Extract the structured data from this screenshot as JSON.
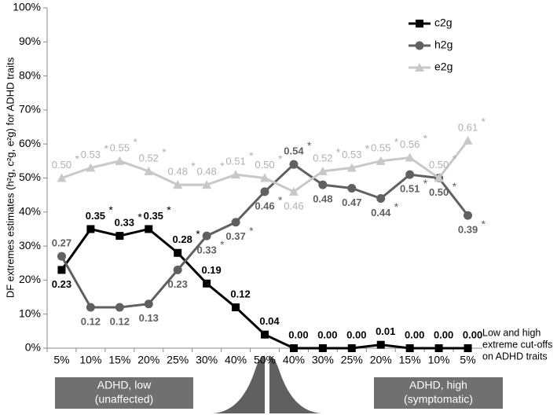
{
  "chart_data": {
    "type": "line",
    "y_label": "DF extremes estimates (h²g, c²g, e²g) for ADHD traits",
    "x_note": [
      "Low and high",
      "extreme cut-offs",
      "on ADHD traits"
    ],
    "low_box": [
      "ADHD, low",
      "(unaffected)"
    ],
    "high_box": [
      "ADHD, high",
      "(symptomatic)"
    ],
    "categories": [
      "5%",
      "10%",
      "15%",
      "20%",
      "25%",
      "30%",
      "40%",
      "50%",
      "40%",
      "30%",
      "25%",
      "20%",
      "15%",
      "10%",
      "5%"
    ],
    "ylim": [
      0,
      100
    ],
    "yticks": [
      {
        "value": 0,
        "label": "0%"
      },
      {
        "value": 10,
        "label": "10%"
      },
      {
        "value": 20,
        "label": "20%"
      },
      {
        "value": 30,
        "label": "30%"
      },
      {
        "value": 40,
        "label": "40%"
      },
      {
        "value": 50,
        "label": "50%"
      },
      {
        "value": 60,
        "label": "60%"
      },
      {
        "value": 70,
        "label": "70%"
      },
      {
        "value": 80,
        "label": "80%"
      },
      {
        "value": 90,
        "label": "90%"
      },
      {
        "value": 100,
        "label": "100%"
      }
    ],
    "legend": "top-right",
    "series": [
      {
        "name": "c2g",
        "color": "#000000",
        "marker": "square",
        "values": [
          23,
          35,
          33,
          35,
          28,
          19,
          12,
          4,
          0,
          0,
          0,
          1,
          0,
          0,
          0
        ],
        "value_labels": [
          "0.23",
          "0.35",
          "0.33",
          "0.35",
          "0.28",
          "0.19",
          "0.12",
          "0.04",
          "0.00",
          "0.00",
          "0.00",
          "0.01",
          "0.00",
          "0.00",
          "0.00"
        ],
        "significance": [
          null,
          "*",
          "*",
          "*",
          "*",
          null,
          null,
          null,
          null,
          null,
          null,
          null,
          null,
          null,
          null
        ]
      },
      {
        "name": "h2g",
        "color": "#606060",
        "marker": "circle",
        "values": [
          27,
          12,
          12,
          13,
          23,
          33,
          37,
          46,
          54,
          48,
          47,
          44,
          51,
          50,
          39
        ],
        "value_labels": [
          "0.27",
          "0.12",
          "0.12",
          "0.13",
          "0.23",
          "0.33",
          "0.37",
          "0.46",
          "0.54",
          "0.48",
          "0.47",
          "0.44",
          "0.51",
          "0.50",
          "0.39"
        ],
        "significance": [
          null,
          null,
          null,
          null,
          null,
          "*",
          "*",
          "*",
          "*",
          null,
          null,
          "*",
          "*",
          "*",
          "*"
        ]
      },
      {
        "name": "e2g",
        "color": "#c8c8c8",
        "marker": "triangle",
        "values": [
          50,
          53,
          55,
          52,
          48,
          48,
          51,
          50,
          46,
          52,
          53,
          55,
          56,
          50,
          61
        ],
        "value_labels": [
          "0.50",
          "0.53",
          "0.55",
          "0.52",
          "0.48",
          "0.48",
          "0.51",
          "0.50",
          "0.46",
          "0.52",
          "0.53",
          "0.55",
          "0.56",
          "0.50",
          "0.61"
        ],
        "significance": [
          "*",
          "*",
          "*",
          "*",
          "*",
          "*",
          "*",
          "*",
          null,
          "*",
          "*",
          "*",
          "*",
          "*",
          "*"
        ]
      }
    ]
  }
}
